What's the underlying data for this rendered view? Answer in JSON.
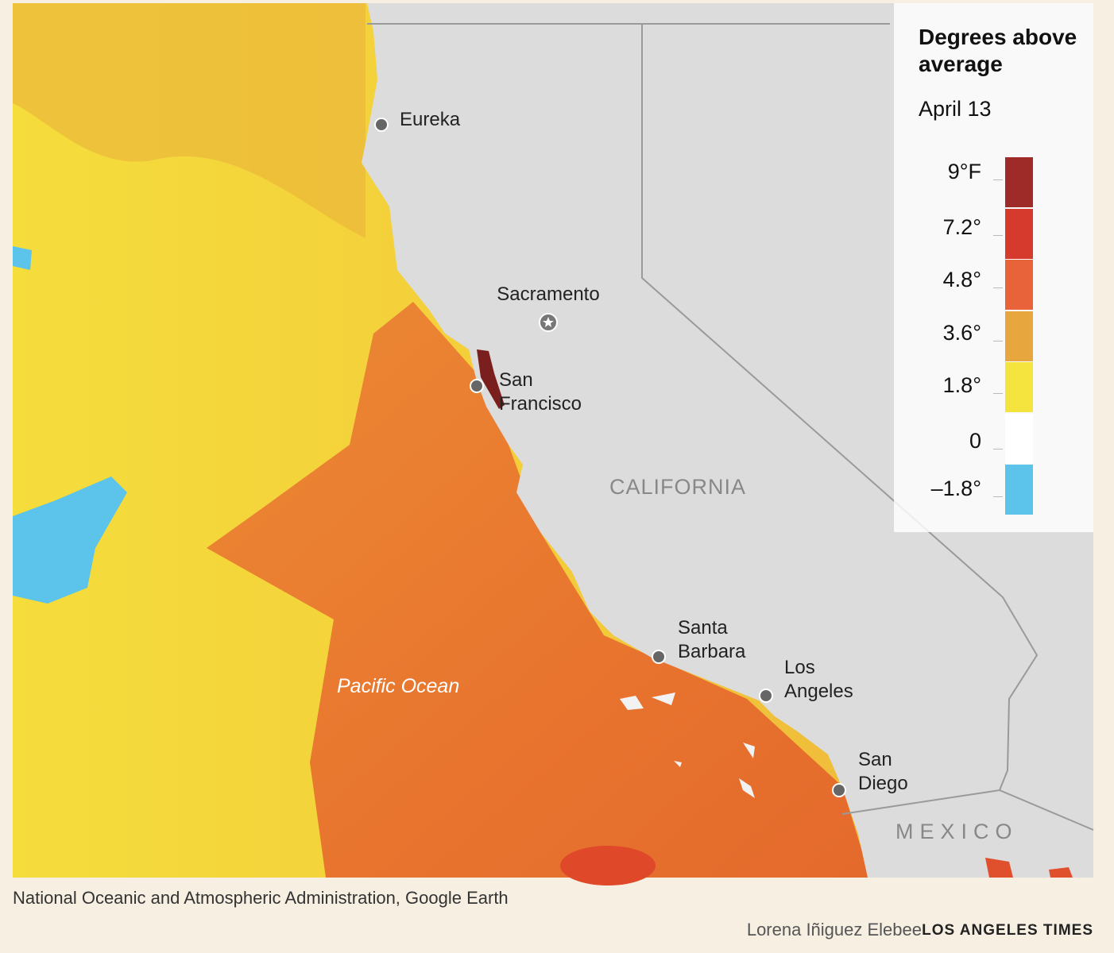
{
  "legend": {
    "title": "Degrees above average",
    "date": "April 13",
    "ticks": [
      "9°F",
      "7.2°",
      "4.8°",
      "3.6°",
      "1.8°",
      "0",
      "–1.8°"
    ],
    "colors": [
      "#9e2b27",
      "#d63a2c",
      "#e8623a",
      "#e8a63e",
      "#f6e43e",
      "#ffffff",
      "#5cc3ea"
    ]
  },
  "cities": [
    {
      "name": "Eureka"
    },
    {
      "name": "Sacramento"
    },
    {
      "name": "San Francisco"
    },
    {
      "name": "Santa Barbara"
    },
    {
      "name": "Los Angeles"
    },
    {
      "name": "San Diego"
    }
  ],
  "regions": {
    "state": "CALIFORNIA",
    "country": "MEXICO",
    "ocean": "Pacific Ocean"
  },
  "footer": {
    "source": "National Oceanic and Atmospheric Administration, Google Earth",
    "credit": "Lorena Iñiguez Elebee",
    "publisher": "LOS ANGELES TIMES"
  }
}
